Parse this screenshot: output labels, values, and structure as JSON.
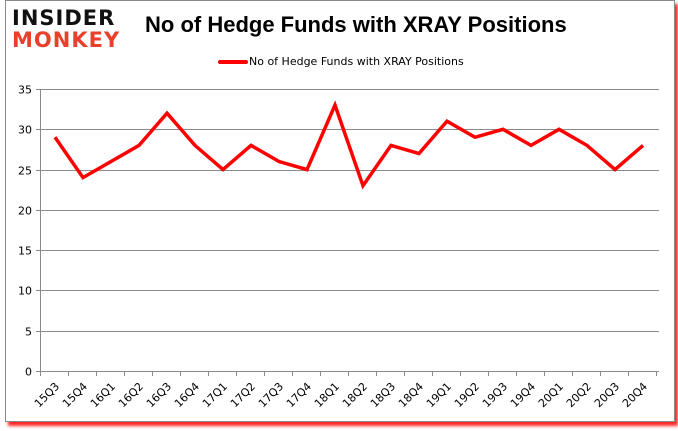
{
  "logo": {
    "top": "INSIDER",
    "bottom": "MONKEY"
  },
  "title": "No of Hedge Funds with XRAY Positions",
  "legend": {
    "label": "No of Hedge Funds with XRAY Positions",
    "color": "#ff0000"
  },
  "colors": {
    "line": "#ff0000",
    "grid": "#8a8a8a",
    "shadow": "#ff0000",
    "logo_accent": "#e8402a"
  },
  "chart_data": {
    "type": "line",
    "title": "No of Hedge Funds with XRAY Positions",
    "xlabel": "",
    "ylabel": "",
    "ylim": [
      0,
      35
    ],
    "yticks": [
      0,
      5,
      10,
      15,
      20,
      25,
      30,
      35
    ],
    "grid": true,
    "legend_position": "top",
    "categories": [
      "15Q3",
      "15Q4",
      "16Q1",
      "16Q2",
      "16Q3",
      "16Q4",
      "17Q1",
      "17Q2",
      "17Q3",
      "17Q4",
      "18Q1",
      "18Q2",
      "18Q3",
      "18Q4",
      "19Q1",
      "19Q2",
      "19Q3",
      "19Q4",
      "20Q1",
      "20Q2",
      "20Q3",
      "20Q4"
    ],
    "series": [
      {
        "name": "No of Hedge Funds with XRAY Positions",
        "values": [
          29,
          24,
          26,
          28,
          32,
          28,
          25,
          28,
          26,
          25,
          33,
          23,
          28,
          27,
          31,
          29,
          30,
          28,
          30,
          28,
          25,
          28
        ]
      }
    ]
  }
}
